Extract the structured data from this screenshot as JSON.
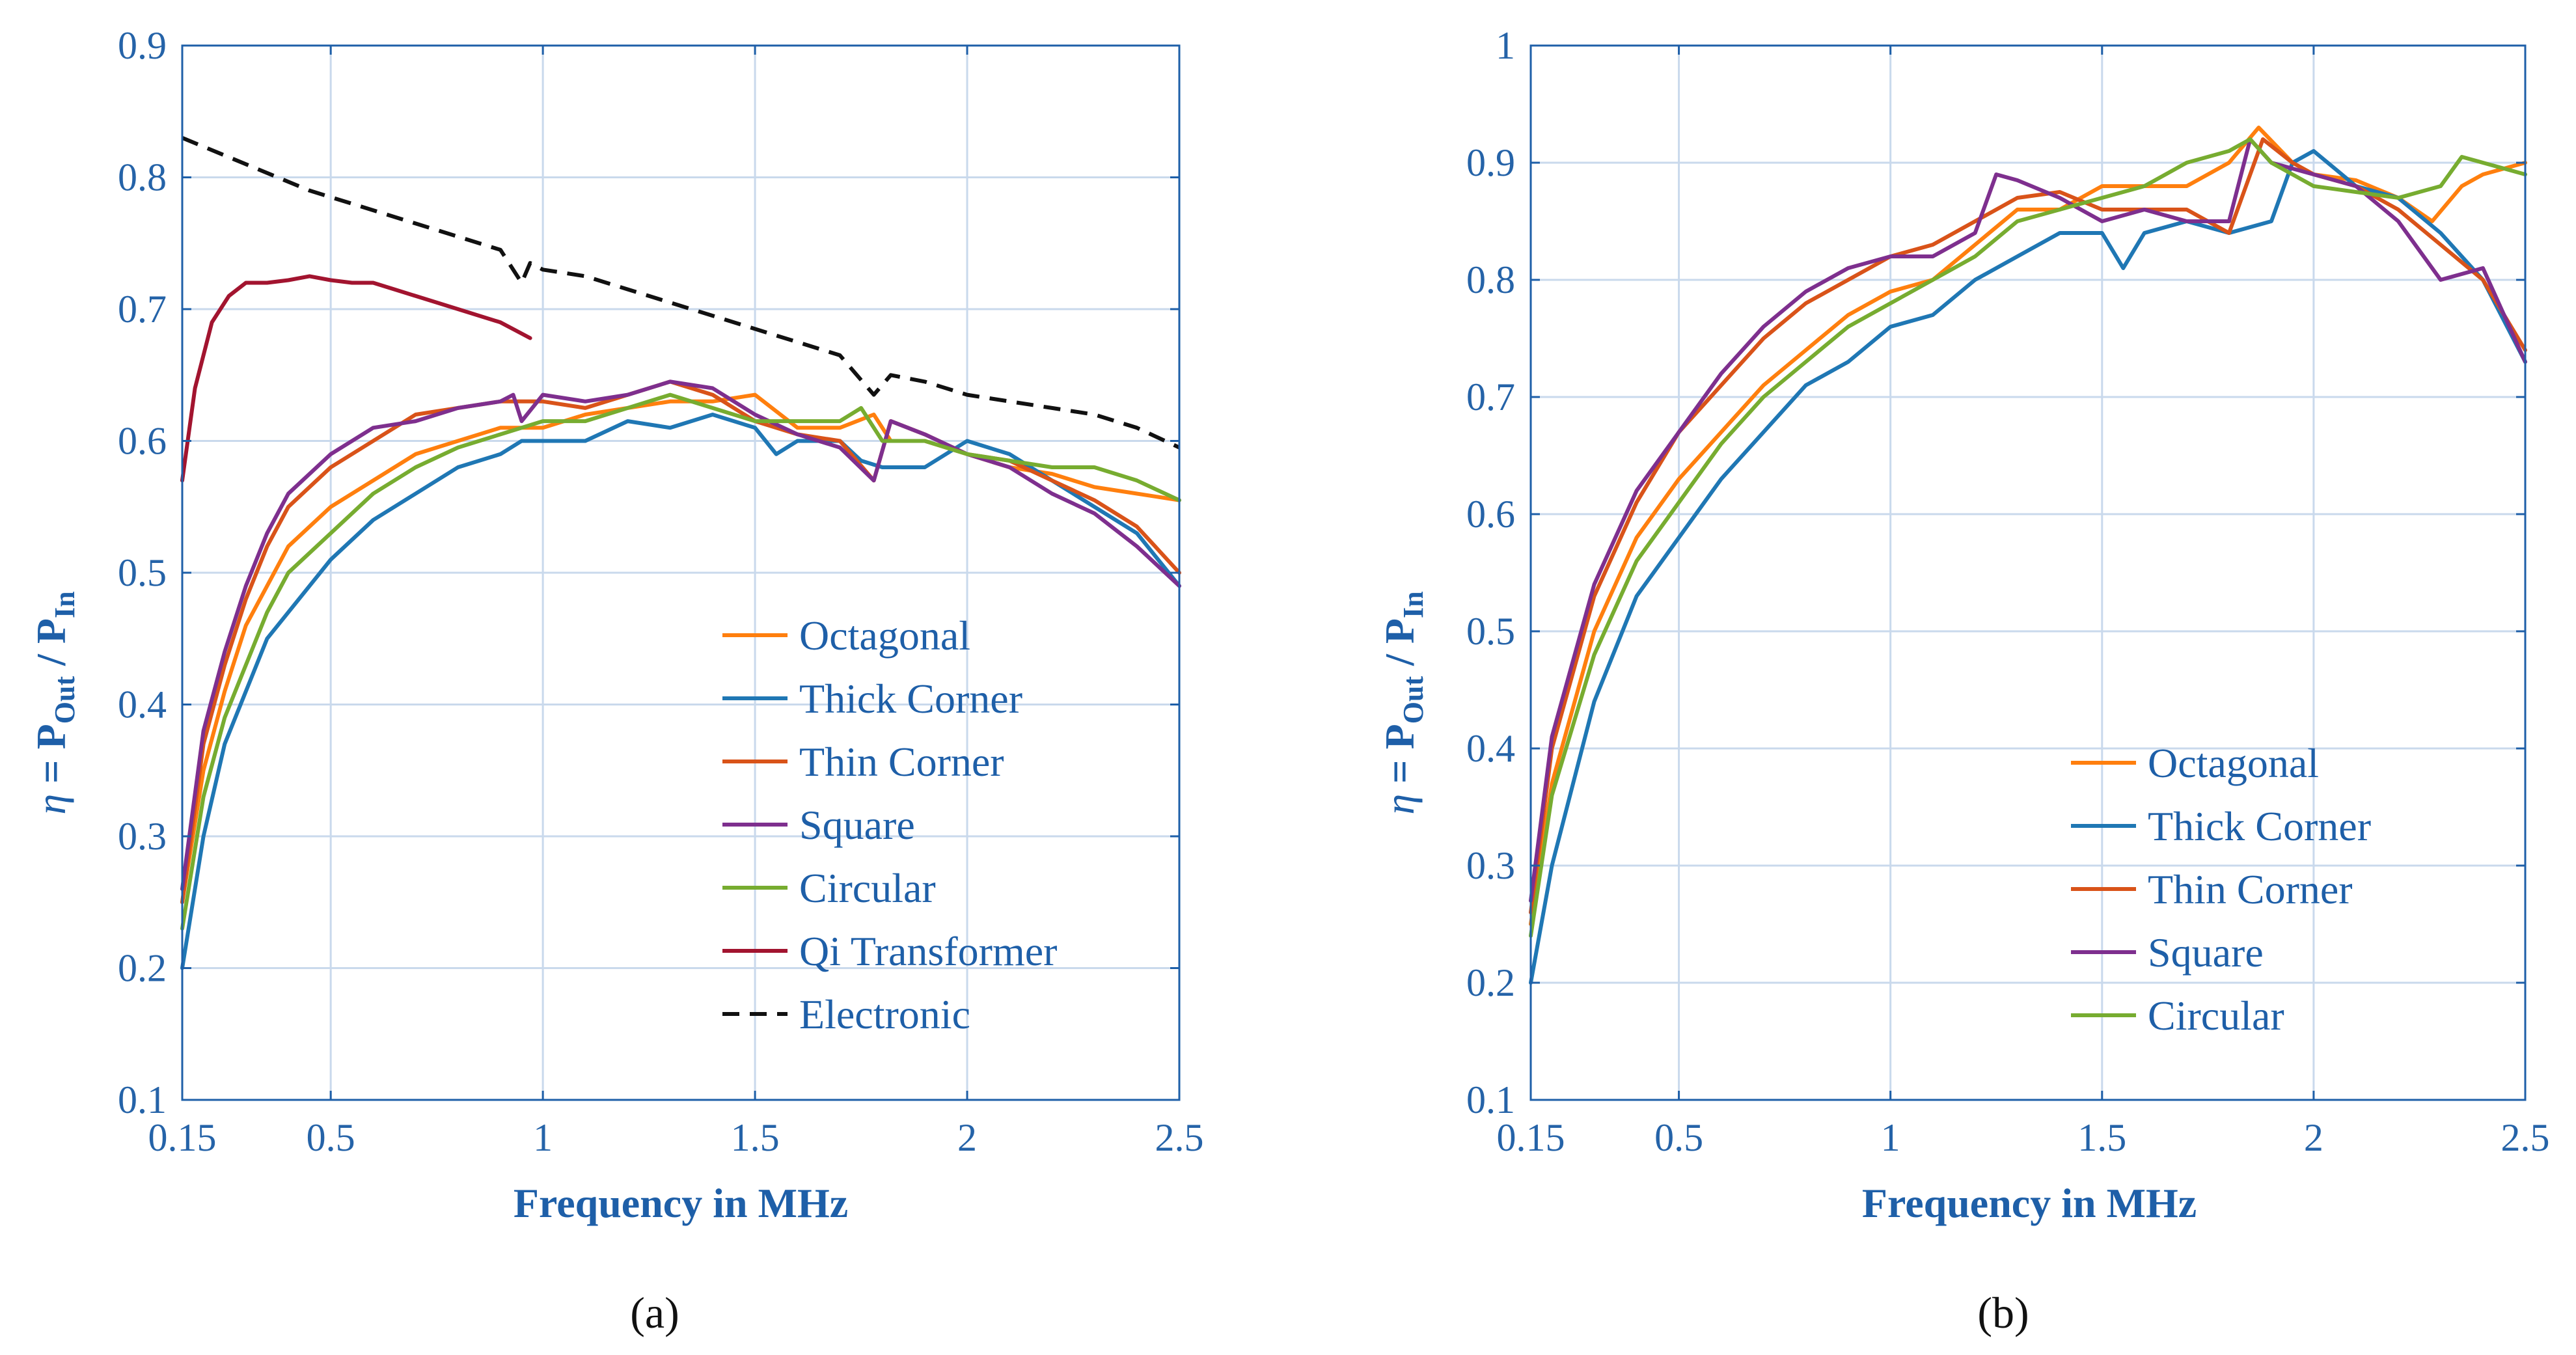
{
  "chart_data": [
    {
      "type": "line",
      "panel_label": "(a)",
      "xlabel": "Frequency in MHz",
      "ylabel": "η = P_Out / P_In",
      "ylabel_parts": {
        "eta": "η",
        "eq": " = P",
        "out": "Out",
        "slash": " / P",
        "in": "In"
      },
      "xlim": [
        0.15,
        2.5
      ],
      "ylim": [
        0.1,
        0.9
      ],
      "xticks": [
        0.15,
        0.5,
        1,
        1.5,
        2,
        2.5
      ],
      "xtick_labels": [
        "0.15",
        "0.5",
        "1",
        "1.5",
        "2",
        "2.5"
      ],
      "yticks": [
        0.1,
        0.2,
        0.3,
        0.4,
        0.5,
        0.6,
        0.7,
        0.8,
        0.9
      ],
      "ytick_labels": [
        "0.1",
        "0.2",
        "0.3",
        "0.4",
        "0.5",
        "0.6",
        "0.7",
        "0.8",
        "0.9"
      ],
      "grid": true,
      "legend_position": "bottom-right",
      "series": [
        {
          "name": "Octagonal",
          "color": "#ff7f0e",
          "dash": false,
          "x": [
            0.15,
            0.2,
            0.25,
            0.3,
            0.35,
            0.4,
            0.5,
            0.6,
            0.7,
            0.8,
            0.9,
            1.0,
            1.1,
            1.2,
            1.3,
            1.4,
            1.5,
            1.6,
            1.7,
            1.78,
            1.82,
            1.9,
            2.0,
            2.1,
            2.2,
            2.3,
            2.4,
            2.5
          ],
          "y": [
            0.25,
            0.35,
            0.41,
            0.46,
            0.49,
            0.52,
            0.55,
            0.57,
            0.59,
            0.6,
            0.61,
            0.61,
            0.62,
            0.625,
            0.63,
            0.63,
            0.635,
            0.61,
            0.61,
            0.62,
            0.6,
            0.6,
            0.59,
            0.58,
            0.575,
            0.565,
            0.56,
            0.555
          ]
        },
        {
          "name": "Thick Corner",
          "color": "#1f77b4",
          "dash": false,
          "x": [
            0.15,
            0.2,
            0.25,
            0.3,
            0.35,
            0.4,
            0.5,
            0.6,
            0.7,
            0.8,
            0.9,
            0.95,
            1.0,
            1.1,
            1.2,
            1.3,
            1.4,
            1.5,
            1.55,
            1.6,
            1.7,
            1.75,
            1.8,
            1.9,
            2.0,
            2.1,
            2.2,
            2.3,
            2.4,
            2.5
          ],
          "y": [
            0.2,
            0.3,
            0.37,
            0.41,
            0.45,
            0.47,
            0.51,
            0.54,
            0.56,
            0.58,
            0.59,
            0.6,
            0.6,
            0.6,
            0.615,
            0.61,
            0.62,
            0.61,
            0.59,
            0.6,
            0.6,
            0.585,
            0.58,
            0.58,
            0.6,
            0.59,
            0.57,
            0.55,
            0.53,
            0.49
          ]
        },
        {
          "name": "Thin Corner",
          "color": "#d95319",
          "dash": false,
          "x": [
            0.15,
            0.2,
            0.25,
            0.3,
            0.35,
            0.4,
            0.5,
            0.6,
            0.7,
            0.8,
            0.9,
            1.0,
            1.1,
            1.2,
            1.3,
            1.4,
            1.5,
            1.6,
            1.7,
            1.78,
            1.82,
            1.9,
            2.0,
            2.1,
            2.2,
            2.3,
            2.4,
            2.5
          ],
          "y": [
            0.25,
            0.37,
            0.43,
            0.48,
            0.52,
            0.55,
            0.58,
            0.6,
            0.62,
            0.625,
            0.63,
            0.63,
            0.625,
            0.635,
            0.645,
            0.635,
            0.615,
            0.605,
            0.6,
            0.57,
            0.615,
            0.605,
            0.59,
            0.585,
            0.57,
            0.555,
            0.535,
            0.5
          ]
        },
        {
          "name": "Square",
          "color": "#7e2f8e",
          "dash": false,
          "x": [
            0.15,
            0.2,
            0.25,
            0.3,
            0.35,
            0.4,
            0.5,
            0.6,
            0.7,
            0.8,
            0.9,
            0.93,
            0.95,
            1.0,
            1.1,
            1.2,
            1.3,
            1.4,
            1.5,
            1.6,
            1.7,
            1.78,
            1.82,
            1.9,
            2.0,
            2.1,
            2.2,
            2.3,
            2.4,
            2.5
          ],
          "y": [
            0.26,
            0.38,
            0.44,
            0.49,
            0.53,
            0.56,
            0.59,
            0.61,
            0.615,
            0.625,
            0.63,
            0.635,
            0.615,
            0.635,
            0.63,
            0.635,
            0.645,
            0.64,
            0.62,
            0.605,
            0.595,
            0.57,
            0.615,
            0.605,
            0.59,
            0.58,
            0.56,
            0.545,
            0.52,
            0.49
          ]
        },
        {
          "name": "Circular",
          "color": "#77ac30",
          "dash": false,
          "x": [
            0.15,
            0.2,
            0.25,
            0.3,
            0.35,
            0.4,
            0.5,
            0.6,
            0.7,
            0.8,
            0.9,
            1.0,
            1.1,
            1.2,
            1.3,
            1.4,
            1.5,
            1.6,
            1.7,
            1.75,
            1.8,
            1.9,
            2.0,
            2.1,
            2.2,
            2.3,
            2.4,
            2.5
          ],
          "y": [
            0.23,
            0.33,
            0.39,
            0.43,
            0.47,
            0.5,
            0.53,
            0.56,
            0.58,
            0.595,
            0.605,
            0.615,
            0.615,
            0.625,
            0.635,
            0.625,
            0.615,
            0.615,
            0.615,
            0.625,
            0.6,
            0.6,
            0.59,
            0.585,
            0.58,
            0.58,
            0.57,
            0.555
          ]
        },
        {
          "name": "Qi Transformer",
          "color": "#a2142f",
          "dash": false,
          "x": [
            0.15,
            0.18,
            0.22,
            0.26,
            0.3,
            0.35,
            0.4,
            0.45,
            0.5,
            0.55,
            0.6,
            0.65,
            0.7,
            0.8,
            0.9,
            0.97
          ],
          "y": [
            0.57,
            0.64,
            0.69,
            0.71,
            0.72,
            0.72,
            0.722,
            0.725,
            0.722,
            0.72,
            0.72,
            0.715,
            0.71,
            0.7,
            0.69,
            0.678
          ]
        },
        {
          "name": "Electronic",
          "color": "#111111",
          "dash": true,
          "x": [
            0.15,
            0.3,
            0.45,
            0.5,
            0.6,
            0.7,
            0.8,
            0.9,
            0.95,
            0.97,
            1.0,
            1.1,
            1.2,
            1.3,
            1.4,
            1.5,
            1.6,
            1.7,
            1.78,
            1.82,
            1.9,
            2.0,
            2.1,
            2.2,
            2.3,
            2.4,
            2.5
          ],
          "y": [
            0.83,
            0.81,
            0.79,
            0.785,
            0.775,
            0.765,
            0.755,
            0.745,
            0.72,
            0.735,
            0.73,
            0.725,
            0.715,
            0.705,
            0.695,
            0.685,
            0.675,
            0.665,
            0.635,
            0.65,
            0.645,
            0.635,
            0.63,
            0.625,
            0.62,
            0.61,
            0.595
          ]
        }
      ]
    },
    {
      "type": "line",
      "panel_label": "(b)",
      "xlabel": "Frequency in MHz",
      "ylabel": "η = P_Out / P_In",
      "ylabel_parts": {
        "eta": "η",
        "eq": " = P",
        "out": "Out",
        "slash": " / P",
        "in": "In"
      },
      "xlim": [
        0.15,
        2.5
      ],
      "ylim": [
        0.1,
        1.0
      ],
      "xticks": [
        0.15,
        0.5,
        1,
        1.5,
        2,
        2.5
      ],
      "xtick_labels": [
        "0.15",
        "0.5",
        "1",
        "1.5",
        "2",
        "2.5"
      ],
      "yticks": [
        0.1,
        0.2,
        0.3,
        0.4,
        0.5,
        0.6,
        0.7,
        0.8,
        0.9,
        1.0
      ],
      "ytick_labels": [
        "0.1",
        "0.2",
        "0.3",
        "0.4",
        "0.5",
        "0.6",
        "0.7",
        "0.8",
        "0.9",
        "1"
      ],
      "grid": true,
      "legend_position": "bottom-right",
      "series": [
        {
          "name": "Octagonal",
          "color": "#ff7f0e",
          "dash": false,
          "x": [
            0.15,
            0.2,
            0.3,
            0.4,
            0.5,
            0.6,
            0.7,
            0.8,
            0.9,
            1.0,
            1.1,
            1.2,
            1.3,
            1.4,
            1.5,
            1.6,
            1.7,
            1.8,
            1.87,
            1.95,
            2.0,
            2.1,
            2.2,
            2.28,
            2.35,
            2.4,
            2.5
          ],
          "y": [
            0.25,
            0.37,
            0.5,
            0.58,
            0.63,
            0.67,
            0.71,
            0.74,
            0.77,
            0.79,
            0.8,
            0.83,
            0.86,
            0.86,
            0.88,
            0.88,
            0.88,
            0.9,
            0.93,
            0.9,
            0.89,
            0.885,
            0.87,
            0.85,
            0.88,
            0.89,
            0.9
          ]
        },
        {
          "name": "Thick Corner",
          "color": "#1f77b4",
          "dash": false,
          "x": [
            0.15,
            0.2,
            0.3,
            0.4,
            0.5,
            0.6,
            0.7,
            0.8,
            0.9,
            1.0,
            1.1,
            1.2,
            1.3,
            1.4,
            1.5,
            1.55,
            1.6,
            1.7,
            1.8,
            1.9,
            1.95,
            2.0,
            2.1,
            2.2,
            2.3,
            2.4,
            2.5
          ],
          "y": [
            0.2,
            0.3,
            0.44,
            0.53,
            0.58,
            0.63,
            0.67,
            0.71,
            0.73,
            0.76,
            0.77,
            0.8,
            0.82,
            0.84,
            0.84,
            0.81,
            0.84,
            0.85,
            0.84,
            0.85,
            0.9,
            0.91,
            0.88,
            0.87,
            0.84,
            0.8,
            0.73
          ]
        },
        {
          "name": "Thin Corner",
          "color": "#d95319",
          "dash": false,
          "x": [
            0.15,
            0.2,
            0.3,
            0.4,
            0.5,
            0.6,
            0.7,
            0.8,
            0.9,
            1.0,
            1.1,
            1.2,
            1.3,
            1.4,
            1.5,
            1.6,
            1.7,
            1.8,
            1.88,
            1.95,
            2.0,
            2.1,
            2.2,
            2.3,
            2.4,
            2.5
          ],
          "y": [
            0.26,
            0.4,
            0.53,
            0.61,
            0.67,
            0.71,
            0.75,
            0.78,
            0.8,
            0.82,
            0.83,
            0.85,
            0.87,
            0.875,
            0.86,
            0.86,
            0.86,
            0.84,
            0.92,
            0.9,
            0.89,
            0.88,
            0.86,
            0.83,
            0.8,
            0.74
          ]
        },
        {
          "name": "Square",
          "color": "#7e2f8e",
          "dash": false,
          "x": [
            0.15,
            0.2,
            0.3,
            0.4,
            0.5,
            0.6,
            0.7,
            0.8,
            0.9,
            1.0,
            1.1,
            1.2,
            1.25,
            1.3,
            1.4,
            1.5,
            1.6,
            1.7,
            1.8,
            1.85,
            1.9,
            2.0,
            2.1,
            2.2,
            2.3,
            2.4,
            2.5
          ],
          "y": [
            0.27,
            0.41,
            0.54,
            0.62,
            0.67,
            0.72,
            0.76,
            0.79,
            0.81,
            0.82,
            0.82,
            0.84,
            0.89,
            0.885,
            0.87,
            0.85,
            0.86,
            0.85,
            0.85,
            0.92,
            0.9,
            0.89,
            0.88,
            0.85,
            0.8,
            0.81,
            0.73
          ]
        },
        {
          "name": "Circular",
          "color": "#77ac30",
          "dash": false,
          "x": [
            0.15,
            0.2,
            0.3,
            0.4,
            0.5,
            0.6,
            0.7,
            0.8,
            0.9,
            1.0,
            1.1,
            1.2,
            1.3,
            1.4,
            1.5,
            1.6,
            1.7,
            1.8,
            1.85,
            1.9,
            2.0,
            2.1,
            2.2,
            2.3,
            2.35,
            2.4,
            2.5
          ],
          "y": [
            0.24,
            0.36,
            0.48,
            0.56,
            0.61,
            0.66,
            0.7,
            0.73,
            0.76,
            0.78,
            0.8,
            0.82,
            0.85,
            0.86,
            0.87,
            0.88,
            0.9,
            0.91,
            0.92,
            0.9,
            0.88,
            0.875,
            0.87,
            0.88,
            0.905,
            0.9,
            0.89
          ]
        }
      ]
    }
  ]
}
